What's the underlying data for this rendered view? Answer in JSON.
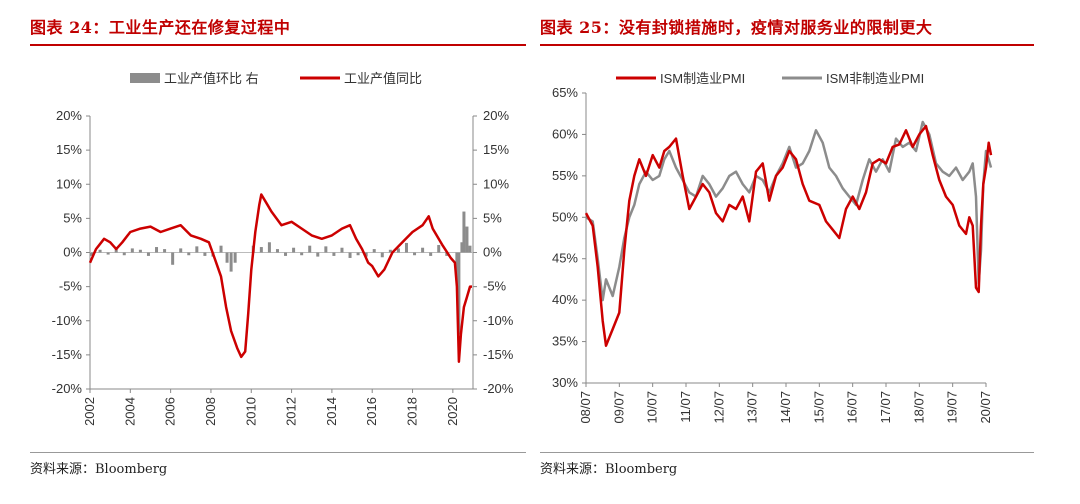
{
  "left_panel": {
    "title": "图表 24：工业生产还在修复过程中",
    "source": "资料来源：Bloomberg"
  },
  "right_panel": {
    "title": "图表 25：没有封锁措施时，疫情对服务业的限制更大",
    "source": "资料来源：Bloomberg"
  },
  "colors": {
    "red": "#cc0000",
    "gray": "#8c8c8c",
    "title": "#c00000"
  },
  "chart_data": [
    {
      "type": "line+bar",
      "title": "工业生产还在修复过程中",
      "x_ticks": [
        "2002",
        "2004",
        "2006",
        "2008",
        "2010",
        "2012",
        "2014",
        "2016",
        "2018",
        "2020"
      ],
      "x_range": [
        2002,
        2021
      ],
      "y_left": {
        "ticks": [
          "20%",
          "15%",
          "10%",
          "5%",
          "0%",
          "-5%",
          "-10%",
          "-15%",
          "-20%"
        ],
        "range": [
          -20,
          20
        ]
      },
      "y_right": {
        "ticks": [
          "20%",
          "15%",
          "10%",
          "5%",
          "0%",
          "-5%",
          "-10%",
          "-15%",
          "-20%"
        ],
        "range": [
          -20,
          20
        ]
      },
      "legend": [
        "工业产值环比 右",
        "工业产值同比"
      ],
      "series": [
        {
          "name": "工业产值同比",
          "kind": "line",
          "axis": "left",
          "points": [
            [
              2002.0,
              -1.5
            ],
            [
              2002.3,
              0.5
            ],
            [
              2002.7,
              2.0
            ],
            [
              2003.0,
              1.5
            ],
            [
              2003.3,
              0.5
            ],
            [
              2003.6,
              1.5
            ],
            [
              2004.0,
              3.0
            ],
            [
              2004.5,
              3.5
            ],
            [
              2005.0,
              3.8
            ],
            [
              2005.5,
              3.0
            ],
            [
              2006.0,
              3.5
            ],
            [
              2006.5,
              4.0
            ],
            [
              2007.0,
              2.5
            ],
            [
              2007.5,
              2.0
            ],
            [
              2007.9,
              1.5
            ],
            [
              2008.2,
              -1.0
            ],
            [
              2008.5,
              -3.5
            ],
            [
              2008.75,
              -8.0
            ],
            [
              2009.0,
              -11.5
            ],
            [
              2009.3,
              -14.0
            ],
            [
              2009.5,
              -15.3
            ],
            [
              2009.7,
              -14.5
            ],
            [
              2009.85,
              -9.0
            ],
            [
              2010.0,
              -2.5
            ],
            [
              2010.2,
              3.0
            ],
            [
              2010.4,
              7.0
            ],
            [
              2010.5,
              8.5
            ],
            [
              2010.8,
              7.0
            ],
            [
              2011.0,
              6.0
            ],
            [
              2011.5,
              4.0
            ],
            [
              2012.0,
              4.5
            ],
            [
              2012.5,
              3.5
            ],
            [
              2013.0,
              2.5
            ],
            [
              2013.5,
              2.0
            ],
            [
              2014.0,
              2.5
            ],
            [
              2014.5,
              3.5
            ],
            [
              2014.9,
              4.0
            ],
            [
              2015.2,
              2.0
            ],
            [
              2015.5,
              0.5
            ],
            [
              2015.8,
              -1.5
            ],
            [
              2016.0,
              -2.0
            ],
            [
              2016.3,
              -3.5
            ],
            [
              2016.6,
              -2.5
            ],
            [
              2017.0,
              0.0
            ],
            [
              2017.5,
              1.5
            ],
            [
              2018.0,
              3.0
            ],
            [
              2018.5,
              4.0
            ],
            [
              2018.8,
              5.3
            ],
            [
              2019.0,
              3.5
            ],
            [
              2019.5,
              1.0
            ],
            [
              2019.9,
              -0.8
            ],
            [
              2020.1,
              -1.5
            ],
            [
              2020.2,
              -5.0
            ],
            [
              2020.3,
              -16.0
            ],
            [
              2020.4,
              -12.0
            ],
            [
              2020.55,
              -8.0
            ],
            [
              2020.7,
              -6.5
            ],
            [
              2020.85,
              -5.0
            ],
            [
              2020.95,
              -5.0
            ]
          ]
        },
        {
          "name": "工业产值环比 右",
          "kind": "bar",
          "axis": "right",
          "points": [
            [
              2002.1,
              -0.5
            ],
            [
              2002.5,
              0.4
            ],
            [
              2002.9,
              -0.3
            ],
            [
              2003.3,
              0.5
            ],
            [
              2003.7,
              -0.4
            ],
            [
              2004.1,
              0.6
            ],
            [
              2004.5,
              0.4
            ],
            [
              2004.9,
              -0.5
            ],
            [
              2005.3,
              0.8
            ],
            [
              2005.7,
              0.5
            ],
            [
              2006.1,
              -1.8
            ],
            [
              2006.5,
              0.6
            ],
            [
              2006.9,
              -0.4
            ],
            [
              2007.3,
              0.9
            ],
            [
              2007.7,
              -0.5
            ],
            [
              2008.1,
              -0.6
            ],
            [
              2008.5,
              1.0
            ],
            [
              2008.8,
              -1.5
            ],
            [
              2009.0,
              -2.8
            ],
            [
              2009.2,
              -1.5
            ],
            [
              2010.1,
              1.0
            ],
            [
              2010.5,
              0.8
            ],
            [
              2010.9,
              1.5
            ],
            [
              2011.3,
              0.5
            ],
            [
              2011.7,
              -0.5
            ],
            [
              2012.1,
              0.7
            ],
            [
              2012.5,
              -0.4
            ],
            [
              2012.9,
              1.0
            ],
            [
              2013.3,
              -0.6
            ],
            [
              2013.7,
              0.9
            ],
            [
              2014.1,
              -0.5
            ],
            [
              2014.5,
              0.7
            ],
            [
              2014.9,
              -0.8
            ],
            [
              2015.3,
              -0.4
            ],
            [
              2015.7,
              -0.6
            ],
            [
              2016.1,
              0.5
            ],
            [
              2016.5,
              -0.7
            ],
            [
              2016.9,
              0.4
            ],
            [
              2017.3,
              0.6
            ],
            [
              2017.7,
              1.4
            ],
            [
              2018.1,
              -0.4
            ],
            [
              2018.5,
              0.7
            ],
            [
              2018.9,
              -0.5
            ],
            [
              2019.3,
              1.1
            ],
            [
              2019.7,
              -0.5
            ],
            [
              2020.2,
              -4.0
            ],
            [
              2020.3,
              -12.0
            ],
            [
              2020.45,
              1.5
            ],
            [
              2020.55,
              6.0
            ],
            [
              2020.7,
              3.8
            ],
            [
              2020.85,
              1.0
            ]
          ]
        }
      ]
    },
    {
      "type": "line",
      "title": "没有封锁措施时，疫情对服务业的限制更大",
      "x_ticks": [
        "08/07",
        "09/07",
        "10/07",
        "11/07",
        "12/07",
        "13/07",
        "14/07",
        "15/07",
        "16/07",
        "17/07",
        "18/07",
        "19/07",
        "20/07"
      ],
      "x_range": [
        2008.5,
        2020.5
      ],
      "y": {
        "ticks": [
          "65%",
          "60%",
          "55%",
          "50%",
          "45%",
          "40%",
          "35%",
          "30%"
        ],
        "range": [
          30,
          65
        ]
      },
      "legend": [
        "ISM制造业PMI",
        "ISM非制造业PMI"
      ],
      "series": [
        {
          "name": "ISM制造业PMI",
          "color": "red",
          "points": [
            [
              2008.5,
              50.5
            ],
            [
              2008.7,
              49.0
            ],
            [
              2008.85,
              44.0
            ],
            [
              2009.0,
              37.5
            ],
            [
              2009.1,
              34.5
            ],
            [
              2009.3,
              36.5
            ],
            [
              2009.5,
              38.5
            ],
            [
              2009.65,
              46.0
            ],
            [
              2009.8,
              52.0
            ],
            [
              2009.95,
              55.0
            ],
            [
              2010.1,
              57.0
            ],
            [
              2010.3,
              55.0
            ],
            [
              2010.5,
              57.5
            ],
            [
              2010.7,
              56.0
            ],
            [
              2010.85,
              58.0
            ],
            [
              2011.0,
              58.5
            ],
            [
              2011.2,
              59.5
            ],
            [
              2011.4,
              55.0
            ],
            [
              2011.6,
              51.0
            ],
            [
              2011.8,
              52.5
            ],
            [
              2012.0,
              54.0
            ],
            [
              2012.2,
              53.0
            ],
            [
              2012.4,
              50.5
            ],
            [
              2012.6,
              49.5
            ],
            [
              2012.8,
              51.5
            ],
            [
              2013.0,
              51.0
            ],
            [
              2013.2,
              52.5
            ],
            [
              2013.4,
              49.5
            ],
            [
              2013.6,
              55.5
            ],
            [
              2013.8,
              56.5
            ],
            [
              2014.0,
              52.0
            ],
            [
              2014.2,
              55.0
            ],
            [
              2014.4,
              56.0
            ],
            [
              2014.6,
              58.0
            ],
            [
              2014.8,
              57.0
            ],
            [
              2015.0,
              54.0
            ],
            [
              2015.2,
              52.0
            ],
            [
              2015.5,
              51.5
            ],
            [
              2015.7,
              49.5
            ],
            [
              2015.9,
              48.5
            ],
            [
              2016.1,
              47.5
            ],
            [
              2016.3,
              51.0
            ],
            [
              2016.5,
              52.5
            ],
            [
              2016.7,
              51.0
            ],
            [
              2016.9,
              53.0
            ],
            [
              2017.1,
              56.5
            ],
            [
              2017.3,
              57.0
            ],
            [
              2017.5,
              56.5
            ],
            [
              2017.7,
              58.5
            ],
            [
              2017.9,
              58.8
            ],
            [
              2018.1,
              60.5
            ],
            [
              2018.3,
              58.5
            ],
            [
              2018.5,
              60.0
            ],
            [
              2018.7,
              61.0
            ],
            [
              2018.9,
              57.5
            ],
            [
              2019.1,
              54.5
            ],
            [
              2019.3,
              52.5
            ],
            [
              2019.5,
              51.5
            ],
            [
              2019.7,
              49.0
            ],
            [
              2019.9,
              48.0
            ],
            [
              2020.0,
              50.0
            ],
            [
              2020.1,
              49.0
            ],
            [
              2020.2,
              41.5
            ],
            [
              2020.28,
              41.0
            ],
            [
              2020.35,
              49.0
            ],
            [
              2020.42,
              54.0
            ],
            [
              2020.5,
              56.0
            ],
            [
              2020.58,
              59.0
            ],
            [
              2020.65,
              57.5
            ]
          ]
        },
        {
          "name": "ISM非制造业PMI",
          "color": "gray",
          "points": [
            [
              2008.5,
              50.0
            ],
            [
              2008.7,
              49.5
            ],
            [
              2008.85,
              45.0
            ],
            [
              2009.0,
              40.0
            ],
            [
              2009.1,
              42.5
            ],
            [
              2009.3,
              40.5
            ],
            [
              2009.5,
              44.0
            ],
            [
              2009.65,
              47.5
            ],
            [
              2009.8,
              50.0
            ],
            [
              2009.95,
              51.5
            ],
            [
              2010.1,
              54.0
            ],
            [
              2010.3,
              55.5
            ],
            [
              2010.5,
              54.5
            ],
            [
              2010.7,
              55.0
            ],
            [
              2010.85,
              57.0
            ],
            [
              2011.0,
              58.0
            ],
            [
              2011.2,
              56.0
            ],
            [
              2011.4,
              54.5
            ],
            [
              2011.6,
              53.0
            ],
            [
              2011.8,
              52.5
            ],
            [
              2012.0,
              55.0
            ],
            [
              2012.2,
              54.0
            ],
            [
              2012.4,
              52.5
            ],
            [
              2012.6,
              53.5
            ],
            [
              2012.8,
              55.0
            ],
            [
              2013.0,
              55.5
            ],
            [
              2013.2,
              54.0
            ],
            [
              2013.4,
              53.0
            ],
            [
              2013.6,
              55.0
            ],
            [
              2013.8,
              54.5
            ],
            [
              2014.0,
              53.0
            ],
            [
              2014.2,
              55.0
            ],
            [
              2014.4,
              56.5
            ],
            [
              2014.6,
              58.5
            ],
            [
              2014.8,
              56.0
            ],
            [
              2015.0,
              56.5
            ],
            [
              2015.2,
              58.0
            ],
            [
              2015.4,
              60.5
            ],
            [
              2015.6,
              59.0
            ],
            [
              2015.8,
              56.0
            ],
            [
              2016.0,
              55.0
            ],
            [
              2016.2,
              53.5
            ],
            [
              2016.4,
              52.5
            ],
            [
              2016.6,
              51.5
            ],
            [
              2016.8,
              54.5
            ],
            [
              2017.0,
              57.0
            ],
            [
              2017.2,
              55.5
            ],
            [
              2017.4,
              57.0
            ],
            [
              2017.6,
              55.5
            ],
            [
              2017.8,
              59.5
            ],
            [
              2018.0,
              58.5
            ],
            [
              2018.2,
              59.0
            ],
            [
              2018.4,
              58.0
            ],
            [
              2018.6,
              61.5
            ],
            [
              2018.8,
              60.0
            ],
            [
              2019.0,
              56.5
            ],
            [
              2019.2,
              55.5
            ],
            [
              2019.4,
              55.0
            ],
            [
              2019.6,
              56.0
            ],
            [
              2019.8,
              54.5
            ],
            [
              2020.0,
              55.5
            ],
            [
              2020.1,
              56.5
            ],
            [
              2020.2,
              52.5
            ],
            [
              2020.28,
              42.0
            ],
            [
              2020.35,
              46.0
            ],
            [
              2020.42,
              54.0
            ],
            [
              2020.5,
              58.0
            ],
            [
              2020.58,
              57.0
            ],
            [
              2020.65,
              56.0
            ]
          ]
        }
      ]
    }
  ]
}
